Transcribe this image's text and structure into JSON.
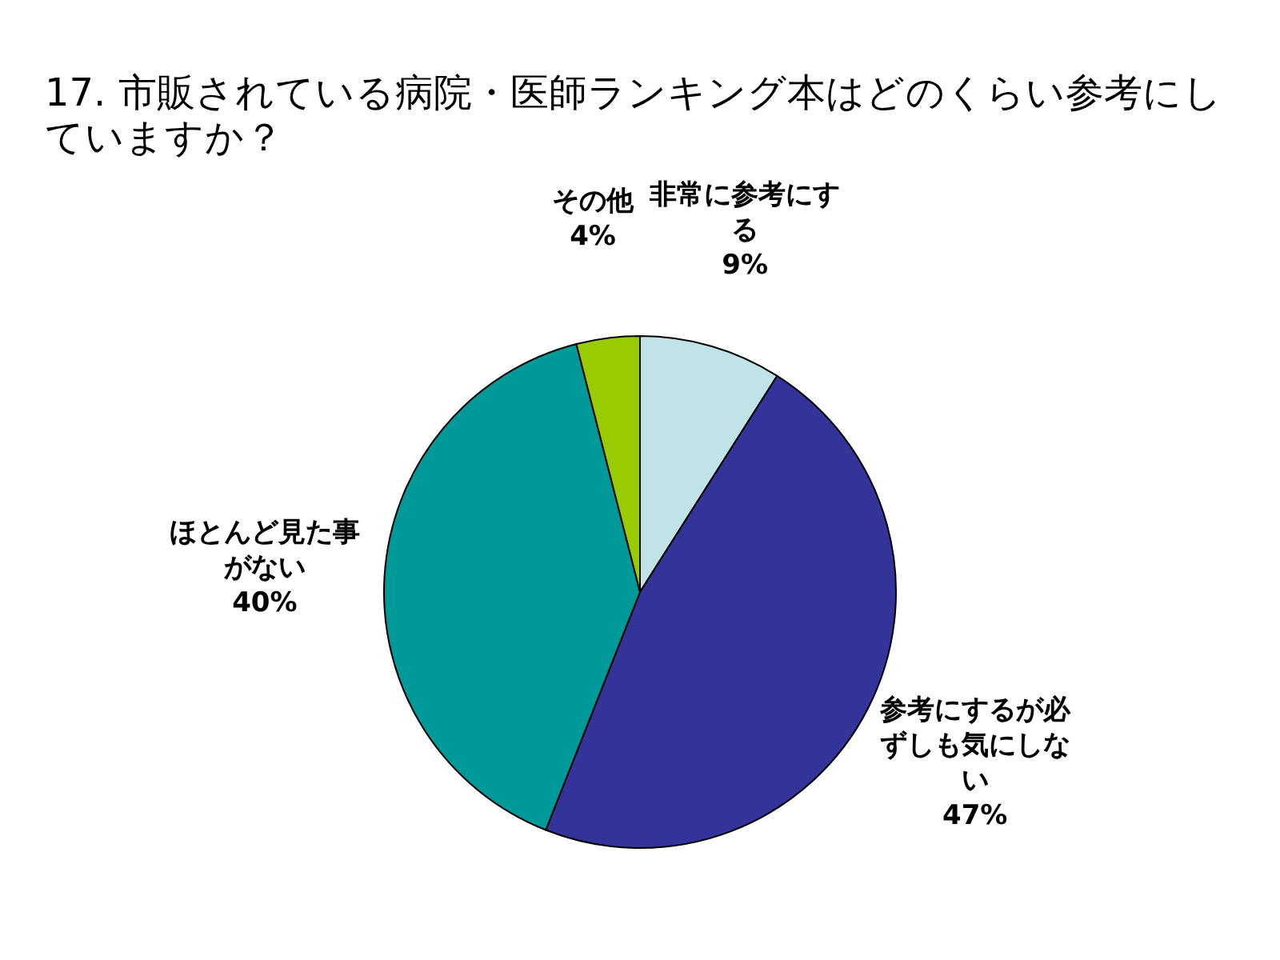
{
  "chart_data": {
    "type": "pie",
    "title": "17.  市販されている病院・医師ランキング本はどのくらい参考にしていますか？",
    "categories": [
      "非常に参考にする",
      "参考にするが必ずしも気にしない",
      "ほとんど見た事がない",
      "その他"
    ],
    "values": [
      9,
      47,
      40,
      4
    ],
    "colors": [
      "#bfe3e6",
      "#333399",
      "#009999",
      "#99cc00"
    ],
    "value_labels": [
      "9%",
      "47%",
      "40%",
      "4%"
    ]
  }
}
